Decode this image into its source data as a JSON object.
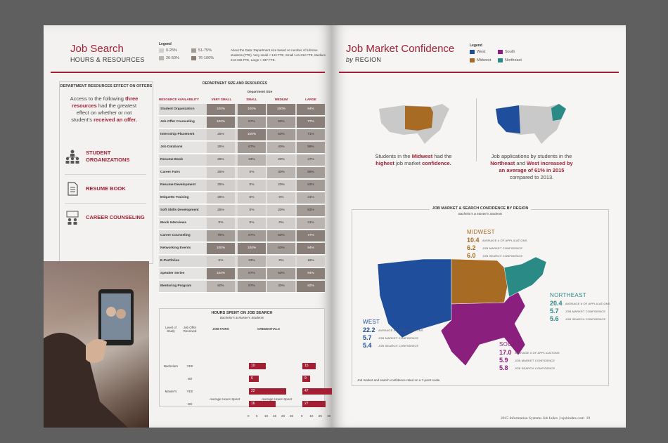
{
  "left": {
    "title": "Job Search",
    "subtitle": "HOURS & RESOURCES",
    "legend": {
      "title": "Legend",
      "items": [
        {
          "label": "0-25%",
          "color": "#d0cdcb"
        },
        {
          "label": "26-50%",
          "color": "#b9b4b0"
        },
        {
          "label": "51-75%",
          "color": "#a39b95"
        },
        {
          "label": "76-100%",
          "color": "#8a7f78"
        }
      ]
    },
    "about": "About the Data: Department size based on number of full-time students (FTE). Very small < 143 FTE, Small 144-212 FTE, Medium 213-336 FTE, Large > 337 FTE.",
    "resources": {
      "heading": "DEPARTMENT RESOURCES EFFECT ON OFFERS",
      "intro_before": "Access to the following",
      "intro_highlight": "three resources",
      "intro_mid": "had the greatest effect on whether or not student's",
      "intro_highlight2": "received an offer.",
      "items": [
        {
          "label": "STUDENT ORGANIZATIONS",
          "icon": "people-org-icon"
        },
        {
          "label": "RESUME BOOK",
          "icon": "document-icon"
        },
        {
          "label": "CAREER COUNSELING",
          "icon": "counseling-icon"
        }
      ]
    },
    "table": {
      "title": "DEPARTMENT SIZE AND RESOURCES",
      "group_header": "Department Size",
      "headers": [
        "RESOURCE AVAILABILITY",
        "VERY SMALL",
        "SMALL",
        "MEDIUM",
        "LARGE"
      ],
      "rows": [
        {
          "name": "Student Organization",
          "values": [
            "100%",
            "100%",
            "100%",
            "94%"
          ]
        },
        {
          "name": "Job Offer Counseling",
          "values": [
            "100%",
            "67%",
            "60%",
            "77%"
          ]
        },
        {
          "name": "Internship Placement",
          "values": [
            "25%",
            "100%",
            "60%",
            "71%"
          ]
        },
        {
          "name": "Job Databank",
          "values": [
            "25%",
            "67%",
            "40%",
            "59%"
          ]
        },
        {
          "name": "Resume Book",
          "values": [
            "25%",
            "33%",
            "20%",
            "47%"
          ]
        },
        {
          "name": "Career Fairs",
          "values": [
            "25%",
            "0%",
            "40%",
            "59%"
          ]
        },
        {
          "name": "Resume Development",
          "values": [
            "25%",
            "0%",
            "20%",
            "53%"
          ]
        },
        {
          "name": "Etiquette Training",
          "values": [
            "25%",
            "0%",
            "0%",
            "41%"
          ]
        },
        {
          "name": "Soft Skills Development",
          "values": [
            "25%",
            "0%",
            "20%",
            "53%"
          ]
        },
        {
          "name": "Mock Interviews",
          "values": [
            "0%",
            "0%",
            "0%",
            "41%"
          ]
        },
        {
          "name": "Career Counseling",
          "values": [
            "75%",
            "67%",
            "60%",
            "77%"
          ]
        },
        {
          "name": "Networking Events",
          "values": [
            "100%",
            "100%",
            "60%",
            "94%"
          ]
        },
        {
          "name": "E-Portfolios",
          "values": [
            "0%",
            "33%",
            "0%",
            "18%"
          ]
        },
        {
          "name": "Speaker Series",
          "values": [
            "100%",
            "67%",
            "60%",
            "94%"
          ]
        },
        {
          "name": "Mentoring Program",
          "values": [
            "50%",
            "67%",
            "40%",
            "82%"
          ]
        }
      ]
    },
    "hours": {
      "title": "HOURS SPENT ON JOB SEARCH",
      "subtitle": "Bachelor's & Master's Students",
      "col_level": "Level of Study",
      "col_offer": "Job Offer Received",
      "col_fairs": "JOB FAIRS",
      "col_cred": "CREDENTIALS",
      "rows": [
        {
          "level": "Bachelors",
          "offer": "YES",
          "fairs": 10,
          "cred": 15
        },
        {
          "level": "",
          "offer": "NO",
          "fairs": 6,
          "cred": 9
        },
        {
          "level": "Master's",
          "offer": "YES",
          "fairs": 22,
          "cred": 47
        },
        {
          "level": "",
          "offer": "NO",
          "fairs": 16,
          "cred": 27
        }
      ],
      "fairs_ticks": [
        "0",
        "5",
        "10",
        "15",
        "20",
        "25"
      ],
      "cred_ticks": [
        "0",
        "10",
        "20",
        "30",
        "40",
        "50"
      ],
      "fairs_axis": "Average Hours Spent",
      "cred_axis": "Average Hours Spent"
    }
  },
  "right": {
    "title": "Job Market Confidence",
    "subtitle_by": "by",
    "subtitle": "REGION",
    "legend": {
      "title": "Legend",
      "items": [
        {
          "label": "West",
          "color": "#1f4e9c"
        },
        {
          "label": "South",
          "color": "#8b1f7d"
        },
        {
          "label": "Midwest",
          "color": "#a86b23"
        },
        {
          "label": "Northeast",
          "color": "#2a8a86"
        }
      ]
    },
    "stat1": {
      "before": "Students in the",
      "hl1": "Midwest",
      "mid": "had the",
      "hl2": "highest",
      "after": "job market",
      "hl3": "confidence."
    },
    "stat2": {
      "before": "Job applications by students in the",
      "hl1": "Northeast",
      "mid": "and",
      "hl2": "West",
      "hl3": "increased by an average of 61% in 2015",
      "after": "compared to 2013."
    },
    "chart": {
      "title": "JOB MARKET & SEARCH CONFIDENCE BY REGION",
      "subtitle": "Bachelor's & Master's Students",
      "note": "Job market and search confidence rated on a 7-point scale.",
      "regions": [
        {
          "name": "MIDWEST",
          "color": "#a86b23",
          "apps": "10.4",
          "market": "6.2",
          "search": "6.0"
        },
        {
          "name": "NORTHEAST",
          "color": "#2a8a86",
          "apps": "20.4",
          "market": "5.7",
          "search": "5.6"
        },
        {
          "name": "WEST",
          "color": "#1f4e9c",
          "apps": "22.2",
          "market": "5.7",
          "search": "5.4"
        },
        {
          "name": "SOUTH",
          "color": "#8b1f7d",
          "apps": "17.0",
          "market": "5.9",
          "search": "5.8"
        }
      ],
      "lbl_apps": "AVERAGE # OF APPLICATIONS",
      "lbl_market": "JOB MARKET CONFIDENCE",
      "lbl_search": "JOB SEARCH CONFIDENCE"
    },
    "footer": "2015 Information Systems Job Index | isjobindex.com",
    "page_number": "19"
  }
}
